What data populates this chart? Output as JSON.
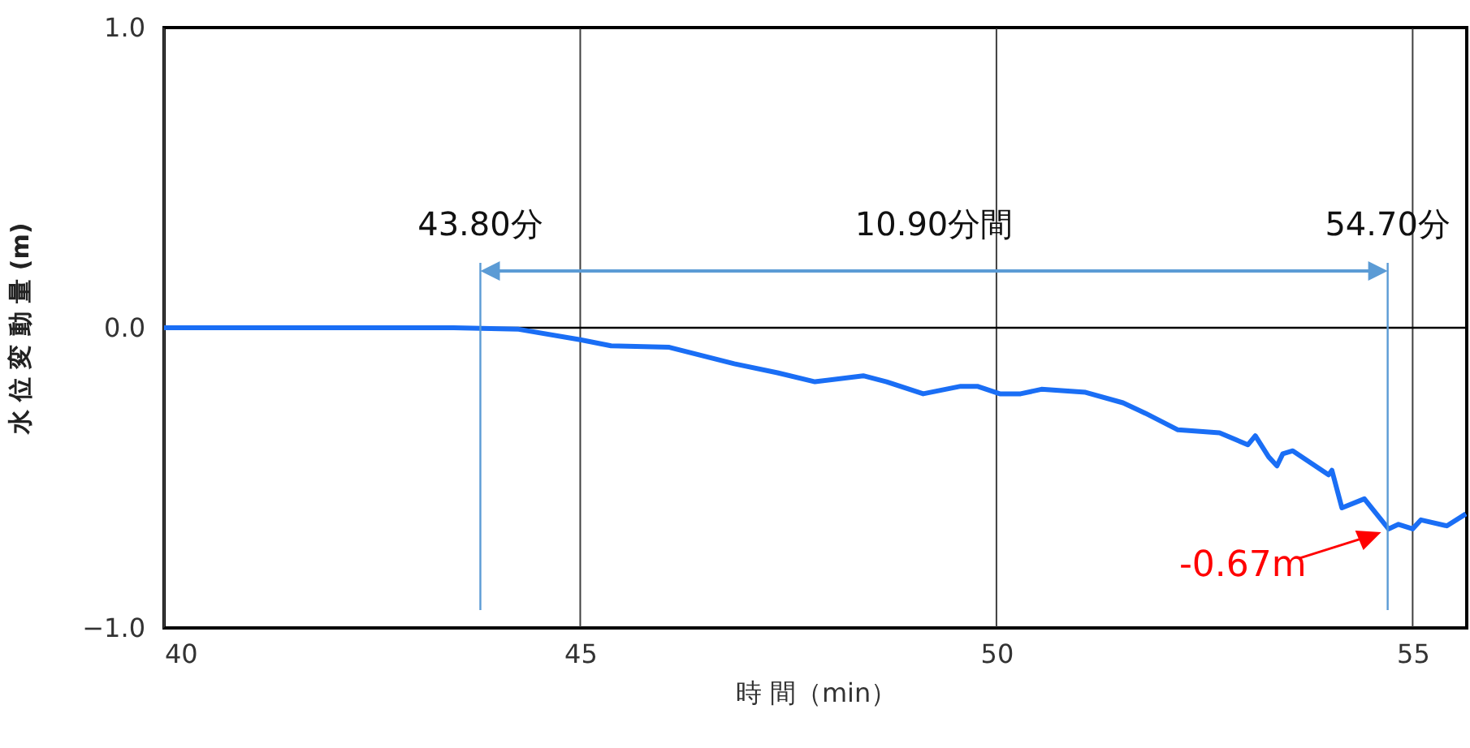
{
  "chart_data": {
    "type": "line",
    "xlabel": "時 間（min）",
    "ylabel": "水 位 変 動 量 (m)",
    "xlim": [
      40,
      55.65
    ],
    "xticks": [
      40,
      45,
      50,
      55
    ],
    "ylim": [
      -1,
      1
    ],
    "yticks": [
      {
        "value": 1,
        "label": "1.0"
      },
      {
        "value": 0,
        "label": "0.0"
      },
      {
        "value": -1,
        "label": "−1.0"
      }
    ],
    "grid": true,
    "series": [
      {
        "color": "#1a6ef5",
        "x": [
          40,
          43.48,
          44.26,
          45,
          45.37,
          46.07,
          46.85,
          47.37,
          47.82,
          48.4,
          48.68,
          49.12,
          49.57,
          49.77,
          50.04,
          50.29,
          50.54,
          51.07,
          51.52,
          51.79,
          52.18,
          52.68,
          53.02,
          53.11,
          53.27,
          53.37,
          53.44,
          53.56,
          53.99,
          54.03,
          54.15,
          54.42,
          54.71,
          54.83,
          55.0,
          55.1,
          55.41,
          55.64
        ],
        "values": [
          0,
          0,
          -0.005,
          -0.04,
          -0.06,
          -0.065,
          -0.12,
          -0.15,
          -0.18,
          -0.16,
          -0.18,
          -0.22,
          -0.195,
          -0.195,
          -0.22,
          -0.22,
          -0.205,
          -0.215,
          -0.25,
          -0.285,
          -0.34,
          -0.35,
          -0.39,
          -0.36,
          -0.43,
          -0.46,
          -0.42,
          -0.41,
          -0.49,
          -0.475,
          -0.6,
          -0.57,
          -0.67,
          -0.655,
          -0.67,
          -0.64,
          -0.66,
          -0.62
        ]
      }
    ],
    "ref_lines": [
      {
        "axis": "x",
        "value": 43.8,
        "label": "43.80分",
        "color": "#5b9bd5"
      },
      {
        "axis": "x",
        "value": 54.7,
        "label": "54.70分",
        "color": "#5b9bd5"
      }
    ],
    "annotations": [
      "10.90分間",
      {
        "text": "-0.67m",
        "x": 54.7,
        "y": -0.67
      }
    ]
  }
}
